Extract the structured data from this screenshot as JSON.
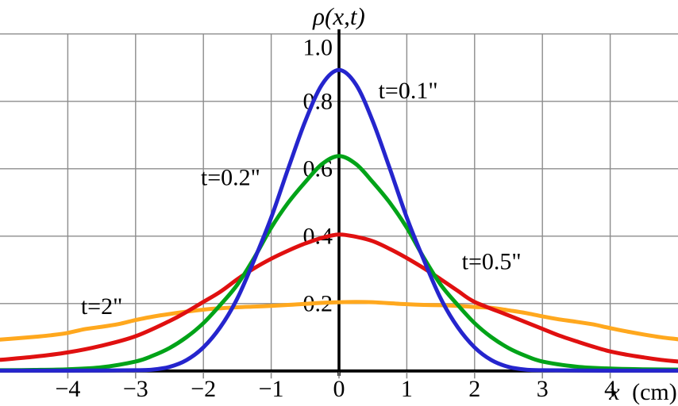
{
  "page": {
    "background": "#ffffff"
  },
  "chart_data": {
    "type": "line",
    "title": "ρ(x,t)",
    "xlabel_italic": "x",
    "xlabel_roman": "(cm)",
    "ylabel": "",
    "xlim": [
      -5,
      5
    ],
    "ylim": [
      0,
      1.06
    ],
    "grid": true,
    "grid_color": "#8c8c8c",
    "axis_color": "#000000",
    "legend_position": "inline-curve-labels",
    "x_ticks": [
      {
        "value": -4,
        "label": "−4"
      },
      {
        "value": -3,
        "label": "−3"
      },
      {
        "value": -2,
        "label": "−2"
      },
      {
        "value": -1,
        "label": "−1"
      },
      {
        "value": 0,
        "label": "0"
      },
      {
        "value": 1,
        "label": "1"
      },
      {
        "value": 2,
        "label": "2"
      },
      {
        "value": 3,
        "label": "3"
      },
      {
        "value": 4,
        "label": "4"
      }
    ],
    "y_ticks": [
      {
        "value": 1.0,
        "label": "1.0"
      },
      {
        "value": 0.8,
        "label": "0.8"
      },
      {
        "value": 0.6,
        "label": "0.6"
      },
      {
        "value": 0.4,
        "label": "0.4"
      },
      {
        "value": 0.2,
        "label": "0.2"
      }
    ],
    "series": [
      {
        "name": "t-0.1s-curve",
        "label": "t=0.1\"",
        "color": "#2525cd",
        "peak": 0.89,
        "label_pos": {
          "x": 1.02,
          "y": 0.832
        },
        "points": [
          [
            -5,
            0.001
          ],
          [
            -4,
            0.001
          ],
          [
            -3,
            0.002
          ],
          [
            -2.75,
            0.004
          ],
          [
            -2.5,
            0.012
          ],
          [
            -2.25,
            0.032
          ],
          [
            -2,
            0.07
          ],
          [
            -1.75,
            0.13
          ],
          [
            -1.5,
            0.215
          ],
          [
            -1.25,
            0.33
          ],
          [
            -1,
            0.455
          ],
          [
            -0.75,
            0.6
          ],
          [
            -0.5,
            0.74
          ],
          [
            -0.25,
            0.85
          ],
          [
            0,
            0.893
          ],
          [
            0.25,
            0.85
          ],
          [
            0.5,
            0.74
          ],
          [
            0.75,
            0.6
          ],
          [
            1,
            0.455
          ],
          [
            1.25,
            0.33
          ],
          [
            1.5,
            0.215
          ],
          [
            1.75,
            0.13
          ],
          [
            2,
            0.07
          ],
          [
            2.25,
            0.032
          ],
          [
            2.5,
            0.012
          ],
          [
            2.75,
            0.004
          ],
          [
            3,
            0.002
          ],
          [
            4,
            0.001
          ],
          [
            5,
            0.001
          ]
        ]
      },
      {
        "name": "t-0.2s-curve",
        "label": "t=0.2\"",
        "color": "#00a318",
        "peak": 0.64,
        "label_pos": {
          "x": -1.6,
          "y": 0.575
        },
        "points": [
          [
            -5,
            0.002
          ],
          [
            -4.5,
            0.003
          ],
          [
            -4,
            0.005
          ],
          [
            -3.5,
            0.011
          ],
          [
            -3,
            0.028
          ],
          [
            -2.75,
            0.045
          ],
          [
            -2.5,
            0.068
          ],
          [
            -2.25,
            0.1
          ],
          [
            -2,
            0.142
          ],
          [
            -1.75,
            0.196
          ],
          [
            -1.5,
            0.256
          ],
          [
            -1.25,
            0.336
          ],
          [
            -1,
            0.425
          ],
          [
            -0.75,
            0.499
          ],
          [
            -0.5,
            0.56
          ],
          [
            -0.25,
            0.614
          ],
          [
            0,
            0.638
          ],
          [
            0.25,
            0.614
          ],
          [
            0.5,
            0.56
          ],
          [
            0.75,
            0.499
          ],
          [
            1,
            0.425
          ],
          [
            1.25,
            0.336
          ],
          [
            1.5,
            0.256
          ],
          [
            1.75,
            0.196
          ],
          [
            2,
            0.142
          ],
          [
            2.25,
            0.1
          ],
          [
            2.5,
            0.068
          ],
          [
            2.75,
            0.045
          ],
          [
            3,
            0.028
          ],
          [
            3.5,
            0.013
          ],
          [
            4,
            0.007
          ],
          [
            4.5,
            0.005
          ],
          [
            5,
            0.004
          ]
        ]
      },
      {
        "name": "t-0.5s-curve",
        "label": "t=0.5\"",
        "color": "#e01010",
        "peak": 0.41,
        "label_pos": {
          "x": 2.25,
          "y": 0.326
        },
        "points": [
          [
            -5,
            0.033
          ],
          [
            -4.5,
            0.042
          ],
          [
            -4,
            0.055
          ],
          [
            -3.5,
            0.075
          ],
          [
            -3,
            0.103
          ],
          [
            -2.5,
            0.148
          ],
          [
            -2.25,
            0.175
          ],
          [
            -2,
            0.205
          ],
          [
            -1.75,
            0.235
          ],
          [
            -1.5,
            0.272
          ],
          [
            -1.25,
            0.305
          ],
          [
            -1,
            0.333
          ],
          [
            -0.75,
            0.357
          ],
          [
            -0.5,
            0.378
          ],
          [
            -0.25,
            0.395
          ],
          [
            0,
            0.405
          ],
          [
            0.25,
            0.398
          ],
          [
            0.5,
            0.385
          ],
          [
            0.75,
            0.362
          ],
          [
            1,
            0.335
          ],
          [
            1.25,
            0.305
          ],
          [
            1.5,
            0.272
          ],
          [
            1.75,
            0.238
          ],
          [
            2,
            0.205
          ],
          [
            2.5,
            0.165
          ],
          [
            2.75,
            0.145
          ],
          [
            3,
            0.125
          ],
          [
            3.25,
            0.105
          ],
          [
            3.5,
            0.088
          ],
          [
            3.75,
            0.072
          ],
          [
            4,
            0.058
          ],
          [
            4.25,
            0.048
          ],
          [
            4.5,
            0.04
          ],
          [
            4.75,
            0.033
          ],
          [
            5,
            0.028
          ]
        ]
      },
      {
        "name": "t-2s-curve",
        "label": "t=2\"",
        "color": "#ffa81e",
        "peak": 0.2,
        "label_pos": {
          "x": -3.5,
          "y": 0.193
        },
        "points": [
          [
            -5,
            0.093
          ],
          [
            -4.75,
            0.097
          ],
          [
            -4.5,
            0.101
          ],
          [
            -4.25,
            0.106
          ],
          [
            -4,
            0.113
          ],
          [
            -3.75,
            0.124
          ],
          [
            -3.5,
            0.131
          ],
          [
            -3.25,
            0.139
          ],
          [
            -3,
            0.151
          ],
          [
            -2.75,
            0.161
          ],
          [
            -2.5,
            0.169
          ],
          [
            -2.25,
            0.176
          ],
          [
            -2,
            0.182
          ],
          [
            -1.75,
            0.186
          ],
          [
            -1.5,
            0.189
          ],
          [
            -1.25,
            0.191
          ],
          [
            -1,
            0.193
          ],
          [
            -0.75,
            0.196
          ],
          [
            -0.5,
            0.199
          ],
          [
            -0.25,
            0.202
          ],
          [
            0,
            0.204
          ],
          [
            0.25,
            0.205
          ],
          [
            0.5,
            0.204
          ],
          [
            0.75,
            0.201
          ],
          [
            1,
            0.198
          ],
          [
            1.25,
            0.196
          ],
          [
            1.5,
            0.195
          ],
          [
            1.75,
            0.193
          ],
          [
            2,
            0.19
          ],
          [
            2.25,
            0.187
          ],
          [
            2.5,
            0.18
          ],
          [
            2.75,
            0.172
          ],
          [
            3,
            0.162
          ],
          [
            3.25,
            0.153
          ],
          [
            3.5,
            0.146
          ],
          [
            3.75,
            0.138
          ],
          [
            4,
            0.127
          ],
          [
            4.25,
            0.117
          ],
          [
            4.5,
            0.108
          ],
          [
            4.75,
            0.1
          ],
          [
            5,
            0.094
          ]
        ]
      }
    ]
  }
}
